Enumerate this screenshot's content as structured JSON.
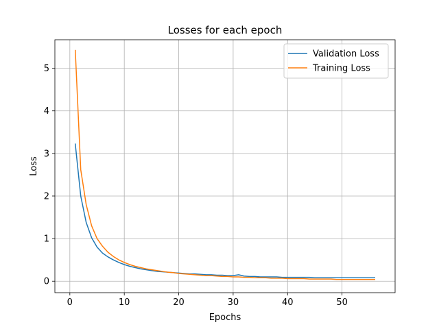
{
  "chart_data": {
    "type": "line",
    "title": "Losses for each epoch",
    "xlabel": "Epochs",
    "ylabel": "Loss",
    "xlim": [
      -2.75,
      59.75
    ],
    "ylim": [
      -0.27,
      5.67
    ],
    "xticks": [
      0,
      10,
      20,
      30,
      40,
      50
    ],
    "yticks": [
      0,
      1,
      2,
      3,
      4,
      5
    ],
    "grid": true,
    "legend_position": "top-right",
    "series": [
      {
        "name": "Validation Loss",
        "color": "#1f77b4",
        "x": [
          1,
          2,
          3,
          4,
          5,
          6,
          7,
          8,
          9,
          10,
          11,
          12,
          13,
          14,
          15,
          16,
          17,
          18,
          19,
          20,
          21,
          22,
          23,
          24,
          25,
          26,
          27,
          28,
          29,
          30,
          31,
          32,
          33,
          34,
          35,
          36,
          37,
          38,
          39,
          40,
          41,
          42,
          43,
          44,
          45,
          46,
          47,
          48,
          49,
          50,
          51,
          52,
          53,
          54,
          55,
          56
        ],
        "values": [
          3.22,
          2.0,
          1.38,
          1.02,
          0.8,
          0.66,
          0.57,
          0.5,
          0.44,
          0.39,
          0.35,
          0.32,
          0.29,
          0.27,
          0.25,
          0.23,
          0.22,
          0.21,
          0.2,
          0.19,
          0.18,
          0.17,
          0.17,
          0.16,
          0.15,
          0.15,
          0.14,
          0.14,
          0.13,
          0.13,
          0.15,
          0.12,
          0.11,
          0.11,
          0.1,
          0.1,
          0.1,
          0.1,
          0.09,
          0.09,
          0.09,
          0.09,
          0.09,
          0.09,
          0.08,
          0.08,
          0.08,
          0.08,
          0.08,
          0.08,
          0.08,
          0.08,
          0.08,
          0.08,
          0.08,
          0.08
        ]
      },
      {
        "name": "Training Loss",
        "color": "#ff7f0e",
        "x": [
          1,
          2,
          3,
          4,
          5,
          6,
          7,
          8,
          9,
          10,
          11,
          12,
          13,
          14,
          15,
          16,
          17,
          18,
          19,
          20,
          21,
          22,
          23,
          24,
          25,
          26,
          27,
          28,
          29,
          30,
          31,
          32,
          33,
          34,
          35,
          36,
          37,
          38,
          39,
          40,
          41,
          42,
          43,
          44,
          45,
          46,
          47,
          48,
          49,
          50,
          51,
          52,
          53,
          54,
          55,
          56
        ],
        "values": [
          5.42,
          2.62,
          1.8,
          1.3,
          1.0,
          0.82,
          0.68,
          0.58,
          0.5,
          0.44,
          0.39,
          0.35,
          0.32,
          0.29,
          0.27,
          0.25,
          0.23,
          0.21,
          0.2,
          0.18,
          0.17,
          0.16,
          0.15,
          0.14,
          0.13,
          0.13,
          0.12,
          0.11,
          0.11,
          0.1,
          0.1,
          0.09,
          0.09,
          0.08,
          0.08,
          0.08,
          0.07,
          0.07,
          0.07,
          0.06,
          0.06,
          0.06,
          0.06,
          0.05,
          0.05,
          0.05,
          0.05,
          0.05,
          0.04,
          0.04,
          0.04,
          0.04,
          0.04,
          0.04,
          0.04,
          0.04
        ]
      }
    ]
  }
}
